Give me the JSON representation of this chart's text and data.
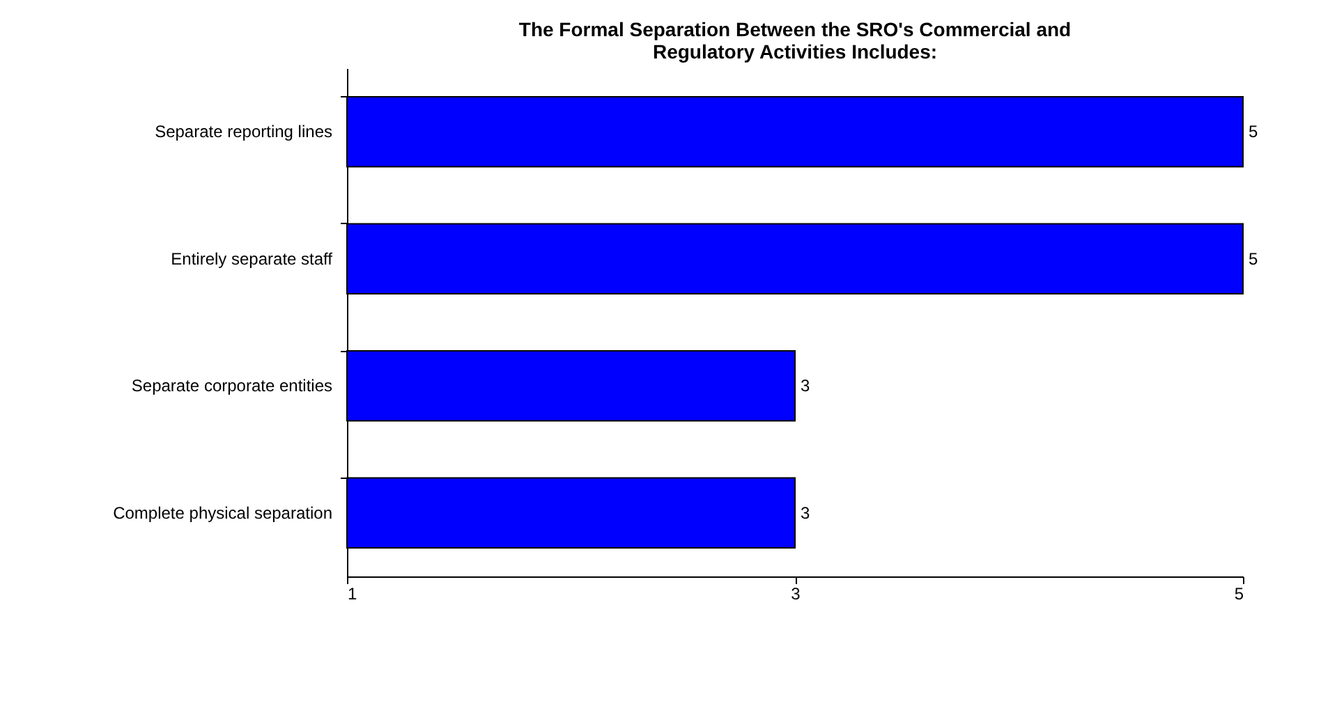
{
  "chart_data": {
    "type": "bar",
    "orientation": "horizontal",
    "title": "The Formal Separation Between the SRO's Commercial and Regulatory Activities Includes:",
    "categories": [
      "Separate reporting lines",
      "Entirely separate staff",
      "Separate corporate entities",
      "Complete physical separation"
    ],
    "values": [
      5,
      5,
      3,
      3
    ],
    "color": "#0000ff",
    "xlim": [
      1,
      5
    ],
    "xticks": [
      1,
      3,
      5
    ],
    "data_labels": true,
    "grid": false,
    "legend": false
  }
}
